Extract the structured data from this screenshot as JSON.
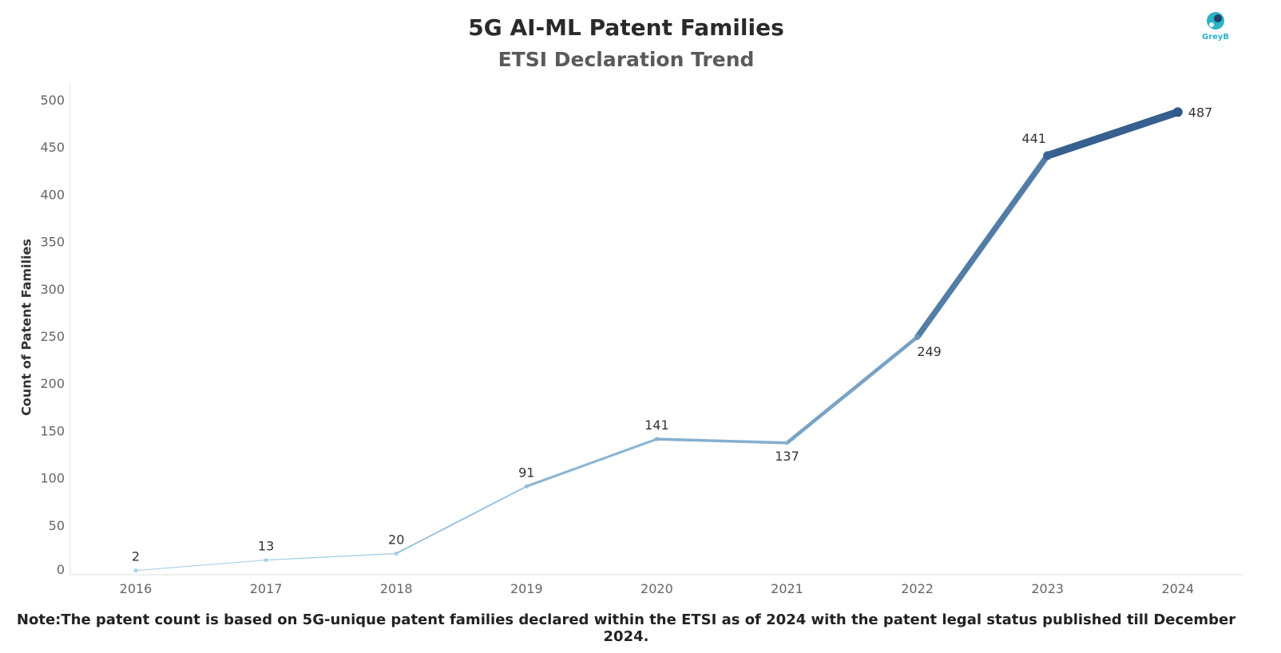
{
  "header": {
    "title": "5G AI-ML Patent Families",
    "subtitle": "ETSI Declaration Trend"
  },
  "logo": {
    "text": "GreyB",
    "icon": "greyb-logo-icon",
    "color": "#2bb3c6"
  },
  "footer": {
    "note": "Note:The patent count is based on 5G-unique patent families declared within the ETSI as of 2024 with the patent legal status published till December 2024."
  },
  "chart_data": {
    "type": "line",
    "title": "5G AI-ML Patent Families",
    "subtitle": "ETSI Declaration Trend",
    "xlabel": "",
    "ylabel": "Count of Patent Families",
    "categories": [
      "2016",
      "2017",
      "2018",
      "2019",
      "2020",
      "2021",
      "2022",
      "2023",
      "2024"
    ],
    "series": [
      {
        "values": [
          2,
          13,
          20,
          91,
          141,
          137,
          249,
          441,
          487
        ]
      }
    ],
    "ylim": [
      0,
      500
    ],
    "yticks": [
      0,
      50,
      100,
      150,
      200,
      250,
      300,
      350,
      400,
      450,
      500
    ],
    "grid": false,
    "legend": "none",
    "color_scale": [
      "#a9d3ea",
      "#2f5a8a"
    ]
  }
}
